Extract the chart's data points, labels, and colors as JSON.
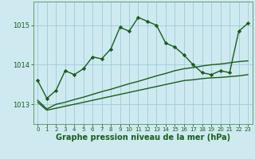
{
  "background_color": "#ceeaf0",
  "grid_color": "#9eccd8",
  "line_color": "#1a5c1a",
  "marker_style": "D",
  "marker_size": 2.2,
  "line_width": 1.0,
  "xlabel": "Graphe pression niveau de la mer (hPa)",
  "xlabel_fontsize": 7,
  "xtick_fontsize": 5,
  "ytick_fontsize": 6,
  "yticks": [
    1013,
    1014,
    1015
  ],
  "ylim": [
    1012.5,
    1015.6
  ],
  "xlim": [
    -0.5,
    23.5
  ],
  "xticks": [
    0,
    1,
    2,
    3,
    4,
    5,
    6,
    7,
    8,
    9,
    10,
    11,
    12,
    13,
    14,
    15,
    16,
    17,
    18,
    19,
    20,
    21,
    22,
    23
  ],
  "series": [
    {
      "x": [
        0,
        1,
        2,
        3,
        4,
        5,
        6,
        7,
        8,
        9,
        10,
        11,
        12,
        13,
        14,
        15,
        16,
        17,
        18,
        19,
        20,
        21,
        22,
        23
      ],
      "y": [
        1013.05,
        1012.85,
        1012.9,
        1012.95,
        1013.0,
        1013.05,
        1013.1,
        1013.15,
        1013.2,
        1013.25,
        1013.3,
        1013.35,
        1013.4,
        1013.45,
        1013.5,
        1013.55,
        1013.6,
        1013.62,
        1013.65,
        1013.67,
        1013.68,
        1013.7,
        1013.72,
        1013.75
      ],
      "has_markers": false
    },
    {
      "x": [
        0,
        1,
        2,
        3,
        4,
        5,
        6,
        7,
        8,
        9,
        10,
        11,
        12,
        13,
        14,
        15,
        16,
        17,
        18,
        19,
        20,
        21,
        22,
        23
      ],
      "y": [
        1013.1,
        1012.88,
        1013.0,
        1013.05,
        1013.12,
        1013.18,
        1013.25,
        1013.32,
        1013.38,
        1013.45,
        1013.52,
        1013.58,
        1013.65,
        1013.72,
        1013.78,
        1013.85,
        1013.9,
        1013.93,
        1013.97,
        1014.0,
        1014.02,
        1014.05,
        1014.08,
        1014.1
      ],
      "has_markers": false
    },
    {
      "x": [
        0,
        1,
        2,
        3,
        4,
        5,
        6,
        7,
        8,
        9,
        10,
        11,
        12,
        13,
        14,
        15,
        16,
        17,
        18,
        19,
        20,
        21,
        22,
        23
      ],
      "y": [
        1013.6,
        1013.15,
        1013.35,
        1013.85,
        1013.75,
        1013.9,
        1014.2,
        1014.15,
        1014.4,
        1014.95,
        1014.85,
        1015.2,
        1015.1,
        1015.0,
        1014.55,
        1014.45,
        1014.25,
        1014.0,
        1013.8,
        1013.75,
        1013.85,
        1013.8,
        1014.85,
        1015.05
      ],
      "has_markers": true
    }
  ]
}
